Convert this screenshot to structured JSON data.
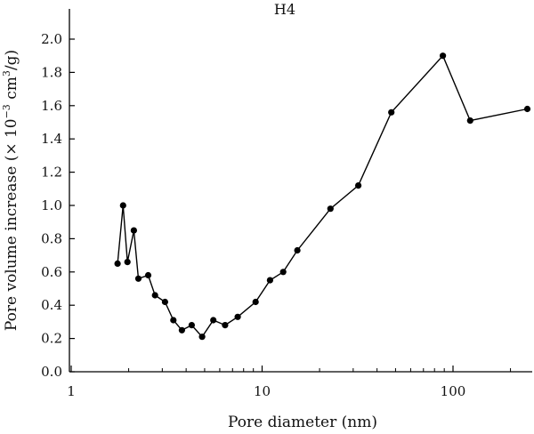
{
  "chart_data": {
    "type": "line",
    "title": "H4",
    "xlabel": "Pore diameter (nm)",
    "ylabel_main": "Pore volume increase (× 10",
    "ylabel_sup": "−3",
    "ylabel_mid": " cm",
    "ylabel_sup2": "3",
    "ylabel_end": "/g)",
    "x_scale": "log",
    "xlim": [
      1,
      250
    ],
    "ylim": [
      0,
      2.1
    ],
    "x_ticks": [
      1,
      10,
      100
    ],
    "x_tick_labels": [
      "1",
      "10",
      "100"
    ],
    "y_ticks": [
      0.0,
      0.2,
      0.4,
      0.6,
      0.8,
      1.0,
      1.2,
      1.4,
      1.6,
      1.8,
      2.0
    ],
    "y_tick_labels": [
      "0.0",
      "0.2",
      "0.4",
      "0.6",
      "0.8",
      "1.0",
      "1.2",
      "1.4",
      "1.6",
      "1.8",
      "2.0"
    ],
    "grid": false,
    "legend": "none",
    "line_color": "#000000",
    "series": [
      {
        "x": [
          1.75,
          1.87,
          1.97,
          2.13,
          2.25,
          2.53,
          2.75,
          3.1,
          3.43,
          3.8,
          4.28,
          4.85,
          5.55,
          6.4,
          7.45,
          9.25,
          11.0,
          12.9,
          15.3,
          22.8,
          31.9,
          47.5,
          88.5,
          123.0,
          245.0
        ],
        "y": [
          0.65,
          1.0,
          0.66,
          0.85,
          0.56,
          0.58,
          0.46,
          0.42,
          0.31,
          0.25,
          0.28,
          0.21,
          0.31,
          0.28,
          0.33,
          0.42,
          0.55,
          0.6,
          0.73,
          0.98,
          1.12,
          1.56,
          1.9,
          1.51,
          1.58
        ]
      }
    ]
  }
}
